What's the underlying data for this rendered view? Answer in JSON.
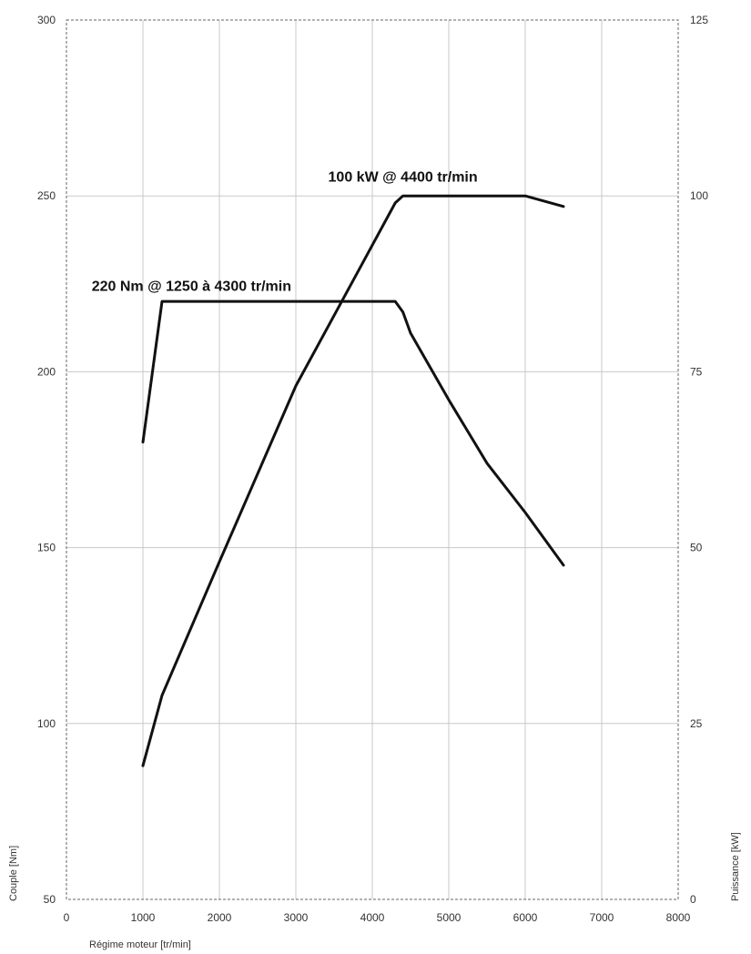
{
  "chart_data": {
    "type": "line",
    "title": "",
    "xlabel": "Régime moteur [tr/min]",
    "ylabel": "Couple [Nm]",
    "y2label": "Puissance [kW]",
    "xlim": [
      0,
      8000
    ],
    "ylim": [
      50,
      300
    ],
    "y2lim": [
      0,
      125
    ],
    "x_ticks": [
      "0",
      "1000",
      "2000",
      "3000",
      "4000",
      "5000",
      "6000",
      "7000",
      "8000"
    ],
    "y_ticks": [
      "50",
      "100",
      "150",
      "200",
      "250",
      "300"
    ],
    "y2_ticks": [
      "0",
      "25",
      "50",
      "75",
      "100",
      "125"
    ],
    "grid": true,
    "series": [
      {
        "axis": "left",
        "color": "#111111",
        "x": [
          1000,
          1250,
          4300,
          4400,
          4500,
          5000,
          5500,
          6000,
          6500
        ],
        "y": [
          180,
          220,
          220,
          217,
          211,
          192,
          174,
          160,
          145
        ]
      },
      {
        "axis": "right",
        "color": "#111111",
        "x": [
          1000,
          1250,
          2000,
          3000,
          4000,
          4300,
          4400,
          5000,
          6000,
          6500
        ],
        "y": [
          19,
          29,
          48,
          73,
          93,
          99,
          100,
          100,
          100,
          98.5
        ]
      }
    ],
    "annotations": [
      {
        "text": "220 Nm @ 1250 à 4300 tr/min",
        "x": 330,
        "y": 223,
        "axis": "left"
      },
      {
        "text": "100 kW @ 4400 tr/min",
        "x": 4400,
        "y": 102,
        "axis": "right"
      }
    ]
  }
}
